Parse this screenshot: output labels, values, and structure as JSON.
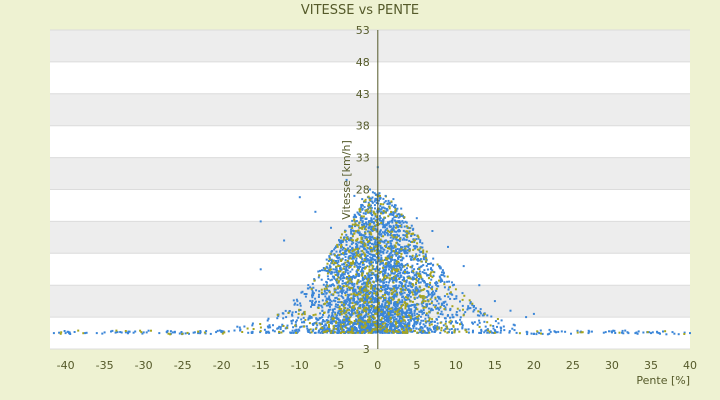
{
  "chart_data": {
    "type": "scatter",
    "title": "VITESSE vs PENTE",
    "xlabel": "Pente [%]",
    "ylabel": "Vitesse [km/h]",
    "xlim": [
      -42,
      40
    ],
    "ylim": [
      3,
      53
    ],
    "x_ticks": [
      -40,
      -35,
      -30,
      -25,
      -20,
      -15,
      -10,
      -5,
      0,
      5,
      10,
      15,
      20,
      25,
      30,
      35,
      40
    ],
    "y_ticks": [
      3,
      8,
      13,
      18,
      23,
      28,
      33,
      38,
      43,
      48,
      53
    ],
    "y_tick_labels": [
      "3",
      "",
      "",
      "",
      "",
      "28",
      "33",
      "38",
      "43",
      "48",
      "53"
    ],
    "grid": true,
    "series": [
      {
        "color": "#3b86d8",
        "approx_points": 3500
      },
      {
        "color": "#a6a51f",
        "approx_points": 800
      }
    ],
    "sample_points": [
      [
        -41.5,
        5.5
      ],
      [
        -40,
        5.5
      ],
      [
        -37.5,
        5.5
      ],
      [
        -36,
        5.5
      ],
      [
        -35,
        5.6
      ],
      [
        -32,
        5.5
      ],
      [
        -30,
        5.6
      ],
      [
        -28,
        5.5
      ],
      [
        -26,
        5.7
      ],
      [
        -22,
        5.8
      ],
      [
        -20,
        5.8
      ],
      [
        -18,
        6.5
      ],
      [
        -16,
        7.0
      ],
      [
        -15,
        15.5
      ],
      [
        -15,
        23.0
      ],
      [
        -12,
        20.0
      ],
      [
        -10,
        26.8
      ],
      [
        -8,
        24.5
      ],
      [
        -6,
        22.0
      ],
      [
        -4,
        29.5
      ],
      [
        -3,
        27.0
      ],
      [
        -2,
        26.5
      ],
      [
        -1,
        28.0
      ],
      [
        0,
        31.5
      ],
      [
        1,
        27.0
      ],
      [
        2,
        26.5
      ],
      [
        3,
        25.0
      ],
      [
        5,
        23.5
      ],
      [
        7,
        21.5
      ],
      [
        9,
        19.0
      ],
      [
        11,
        16.0
      ],
      [
        13,
        13.0
      ],
      [
        15,
        10.5
      ],
      [
        17,
        9.0
      ],
      [
        19,
        8.0
      ],
      [
        20,
        8.5
      ],
      [
        22,
        6.0
      ],
      [
        24,
        5.7
      ],
      [
        27,
        5.5
      ],
      [
        30,
        5.6
      ],
      [
        33,
        5.5
      ],
      [
        35,
        5.5
      ],
      [
        38,
        5.4
      ],
      [
        40,
        5.5
      ]
    ]
  }
}
